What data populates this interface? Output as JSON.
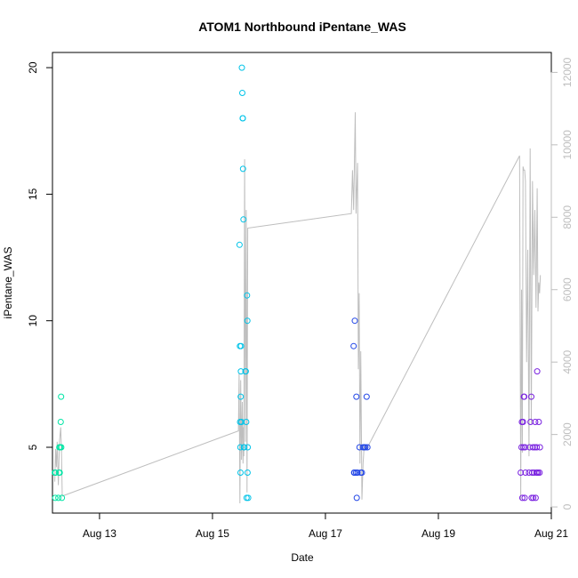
{
  "chart_data": {
    "type": "scatter",
    "title": "ATOM1 Northbound iPentane_WAS",
    "xlabel": "Date",
    "ylabel": "iPentane_WAS",
    "x_ticks": [
      "Aug 13",
      "Aug 15",
      "Aug 17",
      "Aug 19",
      "Aug 21"
    ],
    "y_ticks": [
      "5",
      "10",
      "15",
      "20"
    ],
    "y2_ticks": [
      "0",
      "2000",
      "4000",
      "6000",
      "8000",
      "10000",
      "12000"
    ],
    "xlim": [
      "2016-08-12T04:00",
      "2016-08-21T00:00"
    ],
    "ylim": [
      2.4,
      20.6
    ],
    "y2lim": [
      -170,
      12550
    ],
    "point_colors": [
      "#00e5a5",
      "#00c3e8",
      "#2246e6",
      "#7a22e0"
    ],
    "line_color": "#bebebe",
    "right_axis_color": "#bebebe",
    "series": [
      {
        "color": "#00e5a5",
        "points": [
          [
            "2016-08-12T05:00",
            4
          ],
          [
            "2016-08-12T05:10",
            3
          ],
          [
            "2016-08-12T05:20",
            4
          ],
          [
            "2016-08-12T06:30",
            3
          ],
          [
            "2016-08-12T06:45",
            4
          ],
          [
            "2016-08-12T06:55",
            5
          ],
          [
            "2016-08-12T07:05",
            4
          ],
          [
            "2016-08-12T07:20",
            5
          ],
          [
            "2016-08-12T07:30",
            6
          ],
          [
            "2016-08-12T07:40",
            7
          ],
          [
            "2016-08-12T07:45",
            5
          ],
          [
            "2016-08-12T08:00",
            3
          ]
        ]
      },
      {
        "color": "#00c3e8",
        "points": [
          [
            "2016-08-15T11:30",
            13
          ],
          [
            "2016-08-15T11:40",
            9
          ],
          [
            "2016-08-15T11:45",
            6
          ],
          [
            "2016-08-15T11:50",
            5
          ],
          [
            "2016-08-15T11:55",
            4
          ],
          [
            "2016-08-15T12:00",
            7
          ],
          [
            "2016-08-15T12:05",
            8
          ],
          [
            "2016-08-15T12:10",
            9
          ],
          [
            "2016-08-15T12:20",
            6
          ],
          [
            "2016-08-15T12:30",
            20
          ],
          [
            "2016-08-15T12:40",
            19
          ],
          [
            "2016-08-15T12:50",
            18
          ],
          [
            "2016-08-15T12:55",
            18
          ],
          [
            "2016-08-15T13:00",
            16
          ],
          [
            "2016-08-15T13:10",
            14
          ],
          [
            "2016-08-15T13:20",
            5
          ],
          [
            "2016-08-15T13:30",
            5
          ],
          [
            "2016-08-15T14:00",
            8
          ],
          [
            "2016-08-15T14:10",
            8
          ],
          [
            "2016-08-15T14:20",
            6
          ],
          [
            "2016-08-15T14:30",
            3
          ],
          [
            "2016-08-15T14:40",
            11
          ],
          [
            "2016-08-15T14:50",
            10
          ],
          [
            "2016-08-15T14:55",
            4
          ],
          [
            "2016-08-15T15:00",
            5
          ],
          [
            "2016-08-15T15:10",
            3
          ]
        ]
      },
      {
        "color": "#2246e6",
        "points": [
          [
            "2016-08-17T12:00",
            9
          ],
          [
            "2016-08-17T12:10",
            4
          ],
          [
            "2016-08-17T12:20",
            4
          ],
          [
            "2016-08-17T12:30",
            10
          ],
          [
            "2016-08-17T13:00",
            4
          ],
          [
            "2016-08-17T13:10",
            7
          ],
          [
            "2016-08-17T13:20",
            3
          ],
          [
            "2016-08-17T13:40",
            4
          ],
          [
            "2016-08-17T14:30",
            5
          ],
          [
            "2016-08-17T15:00",
            4
          ],
          [
            "2016-08-17T15:30",
            4
          ],
          [
            "2016-08-17T16:00",
            5
          ],
          [
            "2016-08-17T16:30",
            5
          ],
          [
            "2016-08-17T17:00",
            5
          ],
          [
            "2016-08-17T17:30",
            7
          ],
          [
            "2016-08-17T17:50",
            5
          ]
        ]
      },
      {
        "color": "#7a22e0",
        "points": [
          [
            "2016-08-20T11:00",
            4
          ],
          [
            "2016-08-20T11:20",
            5
          ],
          [
            "2016-08-20T11:30",
            6
          ],
          [
            "2016-08-20T11:40",
            3
          ],
          [
            "2016-08-20T12:00",
            6
          ],
          [
            "2016-08-20T12:10",
            5
          ],
          [
            "2016-08-20T12:20",
            7
          ],
          [
            "2016-08-20T12:30",
            7
          ],
          [
            "2016-08-20T12:40",
            3
          ],
          [
            "2016-08-20T12:50",
            5
          ],
          [
            "2016-08-20T13:00",
            4
          ],
          [
            "2016-08-20T14:30",
            4
          ],
          [
            "2016-08-20T14:50",
            5
          ],
          [
            "2016-08-20T15:10",
            6
          ],
          [
            "2016-08-20T15:30",
            7
          ],
          [
            "2016-08-20T15:40",
            3
          ],
          [
            "2016-08-20T15:50",
            4
          ],
          [
            "2016-08-20T16:10",
            5
          ],
          [
            "2016-08-20T16:20",
            3
          ],
          [
            "2016-08-20T16:40",
            4
          ],
          [
            "2016-08-20T17:00",
            5
          ],
          [
            "2016-08-20T17:10",
            6
          ],
          [
            "2016-08-20T17:20",
            3
          ],
          [
            "2016-08-20T17:40",
            4
          ],
          [
            "2016-08-20T17:50",
            5
          ],
          [
            "2016-08-20T18:00",
            8
          ],
          [
            "2016-08-20T18:10",
            4
          ],
          [
            "2016-08-20T18:20",
            4
          ],
          [
            "2016-08-20T18:40",
            6
          ],
          [
            "2016-08-20T19:00",
            4
          ],
          [
            "2016-08-20T19:10",
            5
          ]
        ]
      }
    ],
    "line_series": [
      [
        "2016-08-12T05:00",
        700
      ],
      [
        "2016-08-12T05:20",
        1600
      ],
      [
        "2016-08-12T05:40",
        1100
      ],
      [
        "2016-08-12T06:00",
        1800
      ],
      [
        "2016-08-12T06:30",
        600
      ],
      [
        "2016-08-12T07:00",
        1800
      ],
      [
        "2016-08-12T07:30",
        2200
      ],
      [
        "2016-08-12T07:50",
        1600
      ],
      [
        "2016-08-12T08:10",
        300
      ],
      [
        "2016-08-15T11:00",
        2100
      ],
      [
        "2016-08-15T11:20",
        3700
      ],
      [
        "2016-08-15T11:40",
        100
      ],
      [
        "2016-08-15T12:00",
        3500
      ],
      [
        "2016-08-15T12:20",
        1300
      ],
      [
        "2016-08-15T12:40",
        2900
      ],
      [
        "2016-08-15T13:00",
        1200
      ],
      [
        "2016-08-15T13:10",
        2200
      ],
      [
        "2016-08-15T13:20",
        1400
      ],
      [
        "2016-08-15T13:40",
        9600
      ],
      [
        "2016-08-15T14:00",
        1800
      ],
      [
        "2016-08-15T14:20",
        8200
      ],
      [
        "2016-08-15T14:40",
        400
      ],
      [
        "2016-08-15T15:00",
        7700
      ],
      [
        "2016-08-17T11:00",
        8100
      ],
      [
        "2016-08-17T11:30",
        9300
      ],
      [
        "2016-08-17T12:00",
        8200
      ],
      [
        "2016-08-17T12:40",
        10900
      ],
      [
        "2016-08-17T13:00",
        8100
      ],
      [
        "2016-08-17T13:40",
        9500
      ],
      [
        "2016-08-17T14:00",
        3800
      ],
      [
        "2016-08-17T14:20",
        5900
      ],
      [
        "2016-08-17T14:40",
        1200
      ],
      [
        "2016-08-17T15:00",
        4300
      ],
      [
        "2016-08-17T15:30",
        200
      ],
      [
        "2016-08-17T16:00",
        1200
      ],
      [
        "2016-08-17T16:30",
        1700
      ],
      [
        "2016-08-17T17:30",
        1600
      ],
      [
        "2016-08-20T10:30",
        9700
      ],
      [
        "2016-08-20T11:00",
        200
      ],
      [
        "2016-08-20T11:20",
        6000
      ],
      [
        "2016-08-20T11:40",
        1500
      ],
      [
        "2016-08-20T12:00",
        9400
      ],
      [
        "2016-08-20T12:20",
        9300
      ],
      [
        "2016-08-20T12:40",
        9300
      ],
      [
        "2016-08-20T13:00",
        9000
      ],
      [
        "2016-08-20T13:30",
        4000
      ],
      [
        "2016-08-20T14:00",
        7100
      ],
      [
        "2016-08-20T14:30",
        1400
      ],
      [
        "2016-08-20T15:00",
        9900
      ],
      [
        "2016-08-20T15:30",
        2300
      ],
      [
        "2016-08-20T16:00",
        9000
      ],
      [
        "2016-08-20T16:30",
        6400
      ],
      [
        "2016-08-20T17:00",
        8200
      ],
      [
        "2016-08-20T17:30",
        5500
      ],
      [
        "2016-08-20T18:00",
        8800
      ],
      [
        "2016-08-20T18:20",
        5400
      ],
      [
        "2016-08-20T18:40",
        6200
      ],
      [
        "2016-08-20T19:00",
        5900
      ],
      [
        "2016-08-20T19:20",
        6400
      ]
    ]
  }
}
